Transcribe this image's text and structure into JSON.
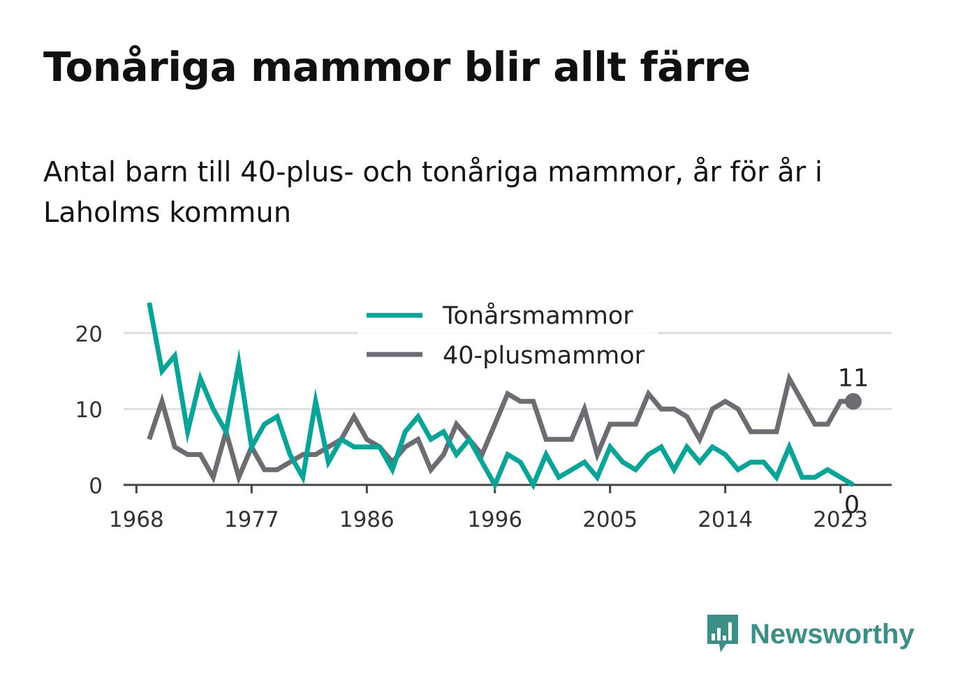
{
  "title": "Tonåriga mammor blir allt färre",
  "subtitle": "Antal barn till 40-plus- och tonåriga mammor, år för år i Laholms kommun",
  "brand": {
    "name": "Newsworthy",
    "icon": "newsworthy-logo-icon",
    "color": "#3b8f86"
  },
  "chart_data": {
    "type": "line",
    "x_ticks": [
      1968,
      1977,
      1986,
      1996,
      2005,
      2014,
      2023
    ],
    "y_ticks": [
      0,
      10,
      20
    ],
    "xlim": [
      1967,
      2027
    ],
    "ylim": [
      0,
      25
    ],
    "grid": true,
    "legend_position": "top-center",
    "x": [
      1969,
      1970,
      1971,
      1972,
      1973,
      1974,
      1975,
      1976,
      1977,
      1978,
      1979,
      1980,
      1981,
      1982,
      1983,
      1984,
      1985,
      1986,
      1987,
      1988,
      1989,
      1990,
      1991,
      1992,
      1993,
      1994,
      1995,
      1996,
      1997,
      1998,
      1999,
      2000,
      2001,
      2002,
      2003,
      2004,
      2005,
      2006,
      2007,
      2008,
      2009,
      2010,
      2011,
      2012,
      2013,
      2014,
      2015,
      2016,
      2017,
      2018,
      2019,
      2020,
      2021,
      2022,
      2023,
      2024
    ],
    "series": [
      {
        "name": "Tonårsmammor",
        "color": "#0aa398",
        "values": [
          24,
          15,
          17,
          7,
          14,
          10,
          7,
          16,
          5,
          8,
          9,
          4,
          1,
          11,
          3,
          6,
          5,
          5,
          5,
          2,
          7,
          9,
          6,
          7,
          4,
          6,
          3,
          0,
          4,
          3,
          0,
          4,
          1,
          2,
          3,
          1,
          5,
          3,
          2,
          4,
          5,
          2,
          5,
          3,
          5,
          4,
          2,
          3,
          3,
          1,
          5,
          1,
          1,
          2,
          1,
          0
        ],
        "end_label": "0"
      },
      {
        "name": "40-plusmammor",
        "color": "#6d6c72",
        "values": [
          6,
          11,
          5,
          4,
          4,
          1,
          7,
          1,
          5,
          2,
          2,
          3,
          4,
          4,
          5,
          6,
          9,
          6,
          5,
          3,
          5,
          6,
          2,
          4,
          8,
          6,
          4,
          8,
          12,
          11,
          11,
          6,
          6,
          6,
          10,
          4,
          8,
          8,
          8,
          12,
          10,
          10,
          9,
          6,
          10,
          11,
          10,
          7,
          7,
          7,
          14,
          11,
          8,
          8,
          11,
          11
        ],
        "end_label": "11"
      }
    ]
  }
}
